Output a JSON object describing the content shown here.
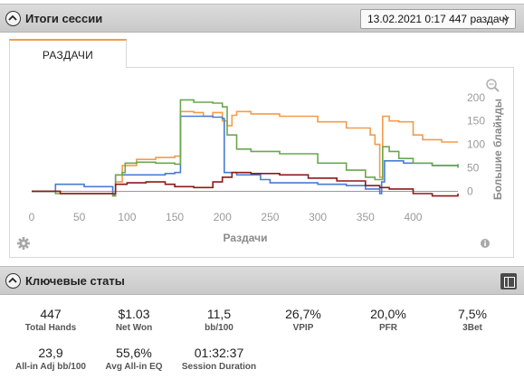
{
  "session_panel": {
    "title": "Итоги сессии",
    "session_select": "13.02.2021 0:17 447 раздач)"
  },
  "tabs": [
    {
      "label": "РАЗДАЧИ"
    }
  ],
  "icons": {
    "zoom": "zoom-icon",
    "settings": "gear-icon",
    "info": "info-icon",
    "collapse": "chevron-up-icon",
    "expand": "expand-panel-icon"
  },
  "chart_data": {
    "type": "line",
    "xlabel": "Раздачи",
    "ylabel": "Большие блайнды",
    "xlim": [
      0,
      447
    ],
    "ylim": [
      -30,
      215
    ],
    "x_ticks": [
      0,
      50,
      100,
      150,
      200,
      250,
      300,
      350,
      400
    ],
    "y_ticks": [
      0,
      50,
      100,
      150,
      200
    ],
    "series": [
      {
        "color": "#f39c4b",
        "points": [
          [
            0,
            0
          ],
          [
            30,
            -5
          ],
          [
            70,
            -5
          ],
          [
            85,
            -8
          ],
          [
            88,
            20
          ],
          [
            95,
            55
          ],
          [
            110,
            68
          ],
          [
            130,
            72
          ],
          [
            150,
            75
          ],
          [
            156,
            170
          ],
          [
            170,
            168
          ],
          [
            180,
            160
          ],
          [
            190,
            168
          ],
          [
            200,
            150
          ],
          [
            205,
            140
          ],
          [
            210,
            162
          ],
          [
            215,
            170
          ],
          [
            230,
            165
          ],
          [
            260,
            160
          ],
          [
            300,
            148
          ],
          [
            330,
            135
          ],
          [
            355,
            120
          ],
          [
            360,
            100
          ],
          [
            365,
            30
          ],
          [
            368,
            160
          ],
          [
            375,
            150
          ],
          [
            385,
            148
          ],
          [
            400,
            120
          ],
          [
            410,
            110
          ],
          [
            430,
            105
          ],
          [
            447,
            105
          ]
        ]
      },
      {
        "color": "#4a7bd4",
        "points": [
          [
            0,
            0
          ],
          [
            25,
            15
          ],
          [
            50,
            15
          ],
          [
            55,
            10
          ],
          [
            80,
            10
          ],
          [
            85,
            -8
          ],
          [
            88,
            35
          ],
          [
            100,
            35
          ],
          [
            140,
            38
          ],
          [
            150,
            40
          ],
          [
            156,
            160
          ],
          [
            170,
            160
          ],
          [
            190,
            158
          ],
          [
            200,
            155
          ],
          [
            202,
            40
          ],
          [
            215,
            35
          ],
          [
            240,
            25
          ],
          [
            250,
            18
          ],
          [
            300,
            15
          ],
          [
            330,
            12
          ],
          [
            350,
            5
          ],
          [
            365,
            -5
          ],
          [
            367,
            20
          ],
          [
            370,
            65
          ],
          [
            390,
            60
          ],
          [
            400,
            60
          ],
          [
            420,
            55
          ],
          [
            447,
            58
          ]
        ]
      },
      {
        "color": "#6aa84f",
        "points": [
          [
            0,
            0
          ],
          [
            25,
            -5
          ],
          [
            60,
            -5
          ],
          [
            85,
            -10
          ],
          [
            88,
            35
          ],
          [
            95,
            40
          ],
          [
            98,
            60
          ],
          [
            110,
            62
          ],
          [
            130,
            60
          ],
          [
            150,
            58
          ],
          [
            156,
            195
          ],
          [
            170,
            190
          ],
          [
            190,
            188
          ],
          [
            200,
            180
          ],
          [
            205,
            120
          ],
          [
            215,
            90
          ],
          [
            230,
            85
          ],
          [
            260,
            80
          ],
          [
            300,
            60
          ],
          [
            330,
            45
          ],
          [
            350,
            30
          ],
          [
            360,
            25
          ],
          [
            368,
            95
          ],
          [
            375,
            85
          ],
          [
            385,
            70
          ],
          [
            400,
            60
          ],
          [
            420,
            55
          ],
          [
            447,
            50
          ]
        ]
      },
      {
        "color": "#8b1a1a",
        "points": [
          [
            0,
            0
          ],
          [
            30,
            -5
          ],
          [
            60,
            -5
          ],
          [
            85,
            -5
          ],
          [
            88,
            15
          ],
          [
            100,
            18
          ],
          [
            120,
            20
          ],
          [
            140,
            15
          ],
          [
            150,
            10
          ],
          [
            170,
            8
          ],
          [
            190,
            20
          ],
          [
            200,
            30
          ],
          [
            210,
            40
          ],
          [
            230,
            38
          ],
          [
            260,
            35
          ],
          [
            290,
            28
          ],
          [
            320,
            22
          ],
          [
            350,
            12
          ],
          [
            365,
            8
          ],
          [
            375,
            5
          ],
          [
            400,
            -5
          ],
          [
            420,
            -10
          ],
          [
            447,
            -5
          ]
        ]
      }
    ]
  },
  "key_stats": {
    "title": "Ключевые статы",
    "row1": [
      {
        "value": "447",
        "label": "Total Hands"
      },
      {
        "value": "$1.03",
        "label": "Net Won"
      },
      {
        "value": "11,5",
        "label": "bb/100"
      },
      {
        "value": "26,7%",
        "label": "VPIP"
      },
      {
        "value": "20,0%",
        "label": "PFR"
      },
      {
        "value": "7,5%",
        "label": "3Bet"
      }
    ],
    "row2": [
      {
        "value": "23,9",
        "label": "All-in Adj bb/100"
      },
      {
        "value": "55,6%",
        "label": "Avg All-in EQ"
      },
      {
        "value": "01:32:37",
        "label": "Session Duration"
      }
    ]
  }
}
